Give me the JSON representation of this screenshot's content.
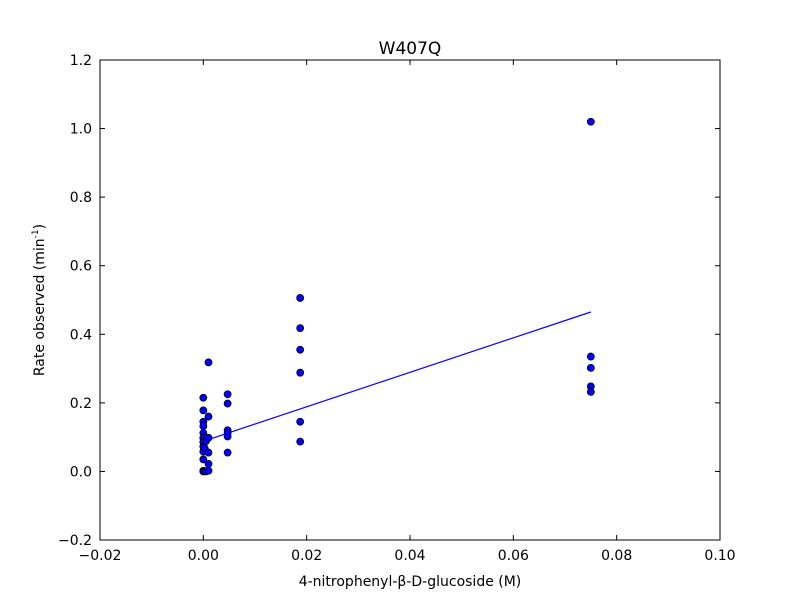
{
  "chart_data": {
    "type": "scatter",
    "title": "W407Q",
    "xlabel": "4-nitrophenyl-β-D-glucoside (M)",
    "ylabel_main": "Rate observed (min",
    "ylabel_sup": "-1",
    "ylabel_end": ")",
    "xlim": [
      -0.02,
      0.1
    ],
    "ylim": [
      -0.2,
      1.2
    ],
    "xticks": [
      -0.02,
      0.0,
      0.02,
      0.04,
      0.06,
      0.08,
      0.1
    ],
    "xtick_labels": [
      "−0.02",
      "0.00",
      "0.02",
      "0.04",
      "0.06",
      "0.08",
      "0.10"
    ],
    "yticks": [
      -0.2,
      0.0,
      0.2,
      0.4,
      0.6,
      0.8,
      1.0,
      1.2
    ],
    "ytick_labels": [
      "−0.2",
      "0.0",
      "0.2",
      "0.4",
      "0.6",
      "0.8",
      "1.0",
      "1.2"
    ],
    "grid": false,
    "marker_color": "#0000ff",
    "line_color": "#0000ff",
    "points": [
      {
        "x": 0.0,
        "y": 0.215
      },
      {
        "x": 0.0,
        "y": 0.178
      },
      {
        "x": 0.0,
        "y": 0.145
      },
      {
        "x": 0.0,
        "y": 0.132
      },
      {
        "x": 0.0,
        "y": 0.112
      },
      {
        "x": 0.0,
        "y": 0.098
      },
      {
        "x": 0.0,
        "y": 0.085
      },
      {
        "x": 0.0,
        "y": 0.072
      },
      {
        "x": 0.0,
        "y": 0.058
      },
      {
        "x": 0.0,
        "y": 0.035
      },
      {
        "x": 0.0,
        "y": 0.002
      },
      {
        "x": 0.0,
        "y": 0.0
      },
      {
        "x": 0.00025,
        "y": 0.068
      },
      {
        "x": 0.00025,
        "y": 0.001
      },
      {
        "x": 0.0005,
        "y": 0.088
      },
      {
        "x": 0.0005,
        "y": 0.0
      },
      {
        "x": 0.001,
        "y": 0.318
      },
      {
        "x": 0.001,
        "y": 0.16
      },
      {
        "x": 0.001,
        "y": 0.098
      },
      {
        "x": 0.001,
        "y": 0.055
      },
      {
        "x": 0.001,
        "y": 0.022
      },
      {
        "x": 0.001,
        "y": 0.002
      },
      {
        "x": 0.0047,
        "y": 0.225
      },
      {
        "x": 0.0047,
        "y": 0.198
      },
      {
        "x": 0.0047,
        "y": 0.12
      },
      {
        "x": 0.0047,
        "y": 0.112
      },
      {
        "x": 0.0047,
        "y": 0.102
      },
      {
        "x": 0.0047,
        "y": 0.055
      },
      {
        "x": 0.01875,
        "y": 0.506
      },
      {
        "x": 0.01875,
        "y": 0.418
      },
      {
        "x": 0.01875,
        "y": 0.355
      },
      {
        "x": 0.01875,
        "y": 0.288
      },
      {
        "x": 0.01875,
        "y": 0.145
      },
      {
        "x": 0.01875,
        "y": 0.087
      },
      {
        "x": 0.075,
        "y": 1.02
      },
      {
        "x": 0.075,
        "y": 0.335
      },
      {
        "x": 0.075,
        "y": 0.302
      },
      {
        "x": 0.075,
        "y": 0.248
      },
      {
        "x": 0.075,
        "y": 0.232
      }
    ],
    "fit_line": [
      {
        "x": 0.0,
        "y": 0.088
      },
      {
        "x": 0.075,
        "y": 0.465
      }
    ]
  }
}
